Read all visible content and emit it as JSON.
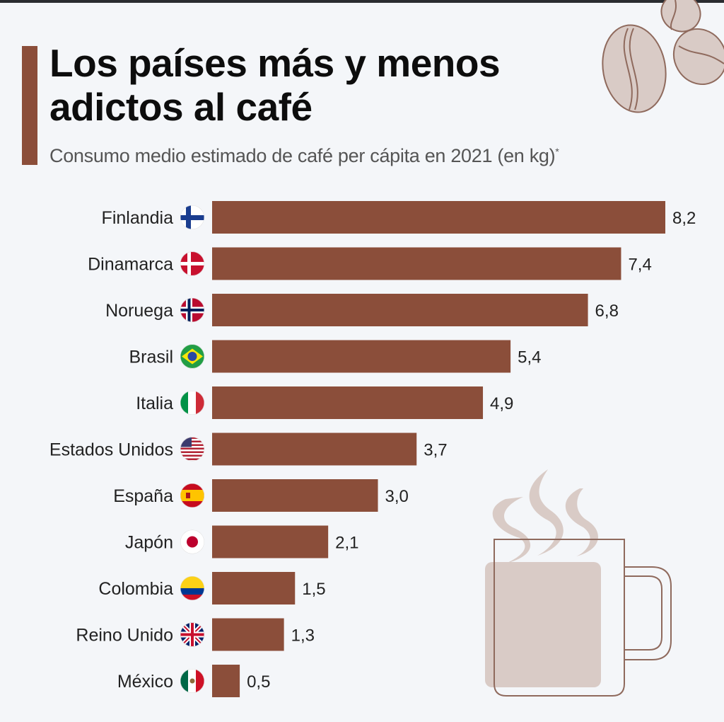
{
  "header": {
    "title_line1": "Los países más y menos",
    "title_line2": "adictos al café",
    "subtitle": "Consumo medio estimado de café per cápita en 2021 (en kg)",
    "subtitle_mark": "*"
  },
  "colors": {
    "bar": "#8b4e3a",
    "accent": "#8b4e3a",
    "decor": "#d9cbc6",
    "decor_line": "#8f6a5d"
  },
  "chart_data": {
    "type": "bar",
    "orientation": "horizontal",
    "title": "Los países más y menos adictos al café",
    "subtitle": "Consumo medio estimado de café per cápita en 2021 (en kg)",
    "xlabel": "",
    "ylabel": "",
    "xlim": [
      0,
      8.2
    ],
    "grid": false,
    "categories": [
      "Finlandia",
      "Dinamarca",
      "Noruega",
      "Brasil",
      "Italia",
      "Estados Unidos",
      "España",
      "Japón",
      "Colombia",
      "Reino Unido",
      "México"
    ],
    "values": [
      8.2,
      7.4,
      6.8,
      5.4,
      4.9,
      3.7,
      3.0,
      2.1,
      1.5,
      1.3,
      0.5
    ],
    "value_labels": [
      "8,2",
      "7,4",
      "6,8",
      "5,4",
      "4,9",
      "3,7",
      "3,0",
      "2,1",
      "1,5",
      "1,3",
      "0,5"
    ],
    "flags": [
      "finland",
      "denmark",
      "norway",
      "brazil",
      "italy",
      "usa",
      "spain",
      "japan",
      "colombia",
      "uk",
      "mexico"
    ]
  }
}
